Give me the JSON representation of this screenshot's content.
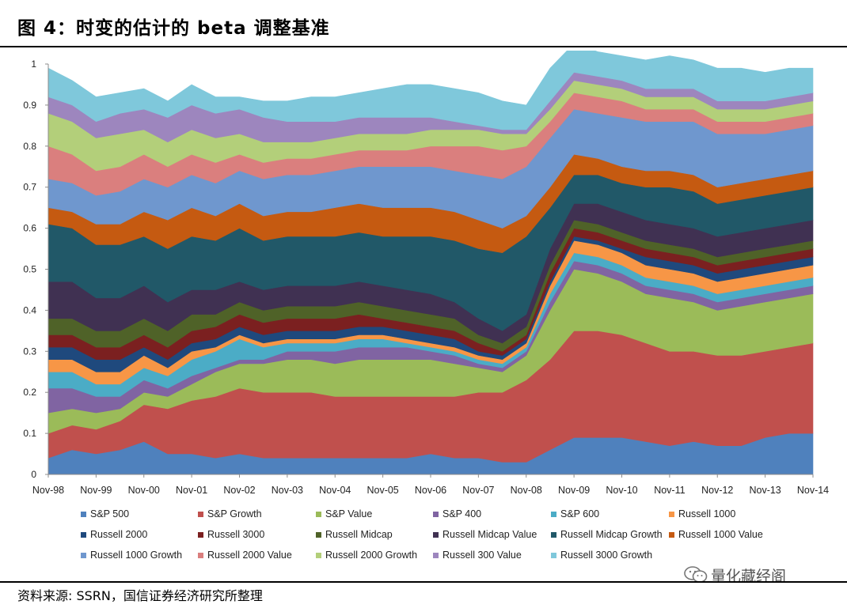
{
  "header": {
    "title": "图 4：时变的估计的 beta 调整基准"
  },
  "footer": {
    "source": "资料来源: SSRN，国信证券经济研究所整理"
  },
  "watermark": {
    "text": "量化藏经阁",
    "icon": "wechat-icon"
  },
  "chart_data": {
    "type": "area",
    "stacked": true,
    "ylim": [
      0,
      1
    ],
    "yticks": [
      "0",
      "0.1",
      "0.2",
      "0.3",
      "0.4",
      "0.5",
      "0.6",
      "0.7",
      "0.8",
      "0.9",
      "1"
    ],
    "xticks": [
      "Nov-98",
      "Nov-99",
      "Nov-00",
      "Nov-01",
      "Nov-02",
      "Nov-03",
      "Nov-04",
      "Nov-05",
      "Nov-06",
      "Nov-07",
      "Nov-08",
      "Nov-09",
      "Nov-10",
      "Nov-11",
      "Nov-12",
      "Nov-13",
      "Nov-14"
    ],
    "x": [
      "Nov-98",
      "May-99",
      "Nov-99",
      "May-00",
      "Nov-00",
      "May-01",
      "Nov-01",
      "May-02",
      "Nov-02",
      "May-03",
      "Nov-03",
      "May-04",
      "Nov-04",
      "May-05",
      "Nov-05",
      "May-06",
      "Nov-06",
      "May-07",
      "Nov-07",
      "May-08",
      "Nov-08",
      "May-09",
      "Nov-09",
      "May-10",
      "Nov-10",
      "May-11",
      "Nov-11",
      "May-12",
      "Nov-12",
      "May-13",
      "Nov-13",
      "May-14",
      "Nov-14"
    ],
    "grid": false,
    "legend_position": "bottom",
    "series": [
      {
        "name": "S&P 500",
        "color": "#4F81BD",
        "values": [
          0.04,
          0.06,
          0.05,
          0.06,
          0.08,
          0.05,
          0.05,
          0.04,
          0.05,
          0.04,
          0.04,
          0.04,
          0.04,
          0.04,
          0.04,
          0.04,
          0.05,
          0.04,
          0.04,
          0.03,
          0.03,
          0.06,
          0.09,
          0.09,
          0.09,
          0.08,
          0.07,
          0.08,
          0.07,
          0.07,
          0.09,
          0.1,
          0.1
        ]
      },
      {
        "name": "S&P Growth",
        "color": "#C0504D",
        "values": [
          0.06,
          0.06,
          0.06,
          0.07,
          0.09,
          0.11,
          0.13,
          0.15,
          0.16,
          0.16,
          0.16,
          0.16,
          0.15,
          0.15,
          0.15,
          0.15,
          0.14,
          0.15,
          0.16,
          0.17,
          0.2,
          0.22,
          0.26,
          0.26,
          0.25,
          0.24,
          0.23,
          0.22,
          0.22,
          0.22,
          0.21,
          0.21,
          0.22
        ]
      },
      {
        "name": "S&P Value",
        "color": "#9BBB59",
        "values": [
          0.05,
          0.04,
          0.04,
          0.03,
          0.03,
          0.03,
          0.04,
          0.06,
          0.06,
          0.07,
          0.08,
          0.08,
          0.08,
          0.09,
          0.09,
          0.09,
          0.09,
          0.08,
          0.06,
          0.05,
          0.06,
          0.12,
          0.15,
          0.14,
          0.13,
          0.12,
          0.13,
          0.12,
          0.11,
          0.12,
          0.12,
          0.12,
          0.12
        ]
      },
      {
        "name": "S&P 400",
        "color": "#8064A2",
        "values": [
          0.06,
          0.05,
          0.04,
          0.03,
          0.03,
          0.02,
          0.02,
          0.01,
          0.01,
          0.01,
          0.02,
          0.02,
          0.03,
          0.03,
          0.03,
          0.03,
          0.02,
          0.02,
          0.01,
          0.01,
          0.01,
          0.02,
          0.02,
          0.02,
          0.02,
          0.02,
          0.02,
          0.02,
          0.02,
          0.02,
          0.02,
          0.02,
          0.02
        ]
      },
      {
        "name": "S&P 600",
        "color": "#4BACC6",
        "values": [
          0.04,
          0.04,
          0.03,
          0.03,
          0.03,
          0.03,
          0.04,
          0.04,
          0.05,
          0.03,
          0.02,
          0.02,
          0.02,
          0.02,
          0.02,
          0.01,
          0.01,
          0.01,
          0.01,
          0.01,
          0.01,
          0.02,
          0.02,
          0.02,
          0.02,
          0.02,
          0.02,
          0.02,
          0.02,
          0.02,
          0.02,
          0.02,
          0.02
        ]
      },
      {
        "name": "Russell 1000",
        "color": "#F79646",
        "values": [
          0.03,
          0.03,
          0.03,
          0.03,
          0.03,
          0.02,
          0.02,
          0.01,
          0.01,
          0.01,
          0.01,
          0.01,
          0.01,
          0.01,
          0.01,
          0.01,
          0.01,
          0.01,
          0.01,
          0.01,
          0.01,
          0.02,
          0.03,
          0.03,
          0.03,
          0.03,
          0.03,
          0.03,
          0.03,
          0.03,
          0.03,
          0.03,
          0.03
        ]
      },
      {
        "name": "Russell 2000",
        "color": "#1F497D",
        "values": [
          0.03,
          0.03,
          0.03,
          0.03,
          0.02,
          0.02,
          0.02,
          0.02,
          0.02,
          0.02,
          0.02,
          0.02,
          0.02,
          0.02,
          0.02,
          0.02,
          0.02,
          0.02,
          0.01,
          0.01,
          0.01,
          0.01,
          0.01,
          0.01,
          0.01,
          0.02,
          0.02,
          0.02,
          0.02,
          0.02,
          0.02,
          0.02,
          0.02
        ]
      },
      {
        "name": "Russell 3000",
        "color": "#7B2020",
        "values": [
          0.03,
          0.03,
          0.03,
          0.03,
          0.03,
          0.03,
          0.03,
          0.03,
          0.03,
          0.03,
          0.03,
          0.03,
          0.03,
          0.03,
          0.02,
          0.02,
          0.02,
          0.02,
          0.02,
          0.01,
          0.01,
          0.02,
          0.02,
          0.02,
          0.02,
          0.02,
          0.02,
          0.02,
          0.02,
          0.02,
          0.02,
          0.02,
          0.02
        ]
      },
      {
        "name": "Russell Midcap",
        "color": "#4F6228",
        "values": [
          0.04,
          0.04,
          0.04,
          0.04,
          0.04,
          0.04,
          0.04,
          0.03,
          0.03,
          0.03,
          0.03,
          0.03,
          0.03,
          0.03,
          0.03,
          0.03,
          0.03,
          0.03,
          0.02,
          0.02,
          0.02,
          0.02,
          0.02,
          0.02,
          0.02,
          0.02,
          0.02,
          0.02,
          0.02,
          0.02,
          0.02,
          0.02,
          0.02
        ]
      },
      {
        "name": "Russell Midcap Value",
        "color": "#403152",
        "values": [
          0.09,
          0.09,
          0.08,
          0.08,
          0.08,
          0.07,
          0.06,
          0.06,
          0.05,
          0.05,
          0.05,
          0.05,
          0.05,
          0.05,
          0.05,
          0.05,
          0.05,
          0.04,
          0.04,
          0.03,
          0.03,
          0.04,
          0.04,
          0.05,
          0.05,
          0.05,
          0.05,
          0.05,
          0.05,
          0.05,
          0.05,
          0.05,
          0.05
        ]
      },
      {
        "name": "Russell Midcap Growth",
        "color": "#215868",
        "values": [
          0.14,
          0.13,
          0.13,
          0.13,
          0.12,
          0.13,
          0.13,
          0.12,
          0.13,
          0.12,
          0.12,
          0.12,
          0.12,
          0.12,
          0.12,
          0.13,
          0.14,
          0.15,
          0.17,
          0.19,
          0.19,
          0.1,
          0.07,
          0.07,
          0.07,
          0.08,
          0.09,
          0.09,
          0.08,
          0.08,
          0.08,
          0.08,
          0.08
        ]
      },
      {
        "name": "Russell 1000 Value",
        "color": "#C55A11",
        "values": [
          0.04,
          0.04,
          0.05,
          0.05,
          0.06,
          0.07,
          0.07,
          0.06,
          0.06,
          0.06,
          0.06,
          0.06,
          0.07,
          0.07,
          0.07,
          0.07,
          0.07,
          0.07,
          0.07,
          0.06,
          0.05,
          0.05,
          0.05,
          0.04,
          0.04,
          0.04,
          0.04,
          0.04,
          0.04,
          0.04,
          0.04,
          0.04,
          0.04
        ]
      },
      {
        "name": "Russell 1000 Growth",
        "color": "#6F97CE",
        "values": [
          0.07,
          0.07,
          0.07,
          0.08,
          0.08,
          0.08,
          0.08,
          0.08,
          0.08,
          0.09,
          0.09,
          0.09,
          0.09,
          0.09,
          0.1,
          0.1,
          0.1,
          0.1,
          0.11,
          0.12,
          0.12,
          0.12,
          0.11,
          0.11,
          0.12,
          0.12,
          0.12,
          0.13,
          0.13,
          0.12,
          0.11,
          0.11,
          0.11
        ]
      },
      {
        "name": "Russell 2000 Value",
        "color": "#DA7F7E",
        "values": [
          0.08,
          0.07,
          0.06,
          0.06,
          0.06,
          0.05,
          0.05,
          0.05,
          0.04,
          0.04,
          0.04,
          0.04,
          0.04,
          0.04,
          0.04,
          0.04,
          0.05,
          0.06,
          0.07,
          0.07,
          0.05,
          0.04,
          0.04,
          0.04,
          0.04,
          0.03,
          0.03,
          0.03,
          0.03,
          0.03,
          0.03,
          0.03,
          0.03
        ]
      },
      {
        "name": "Russell 2000 Growth",
        "color": "#B3CF7A",
        "values": [
          0.08,
          0.08,
          0.08,
          0.08,
          0.06,
          0.06,
          0.06,
          0.06,
          0.05,
          0.05,
          0.04,
          0.04,
          0.04,
          0.04,
          0.04,
          0.04,
          0.04,
          0.04,
          0.04,
          0.04,
          0.03,
          0.03,
          0.03,
          0.03,
          0.03,
          0.03,
          0.03,
          0.03,
          0.03,
          0.03,
          0.03,
          0.03,
          0.03
        ]
      },
      {
        "name": "Russell 300 Value",
        "color": "#9D86BE",
        "values": [
          0.04,
          0.04,
          0.04,
          0.05,
          0.05,
          0.06,
          0.06,
          0.06,
          0.06,
          0.06,
          0.05,
          0.05,
          0.04,
          0.04,
          0.04,
          0.04,
          0.03,
          0.02,
          0.01,
          0.01,
          0.01,
          0.02,
          0.02,
          0.02,
          0.02,
          0.02,
          0.02,
          0.02,
          0.02,
          0.02,
          0.02,
          0.02,
          0.02
        ]
      },
      {
        "name": "Russell 3000 Growth",
        "color": "#7FC8DB",
        "values": [
          0.07,
          0.06,
          0.06,
          0.05,
          0.05,
          0.04,
          0.05,
          0.04,
          0.03,
          0.04,
          0.05,
          0.06,
          0.06,
          0.06,
          0.07,
          0.08,
          0.08,
          0.08,
          0.08,
          0.07,
          0.06,
          0.08,
          0.07,
          0.06,
          0.06,
          0.07,
          0.08,
          0.07,
          0.08,
          0.08,
          0.07,
          0.07,
          0.06
        ]
      }
    ]
  }
}
